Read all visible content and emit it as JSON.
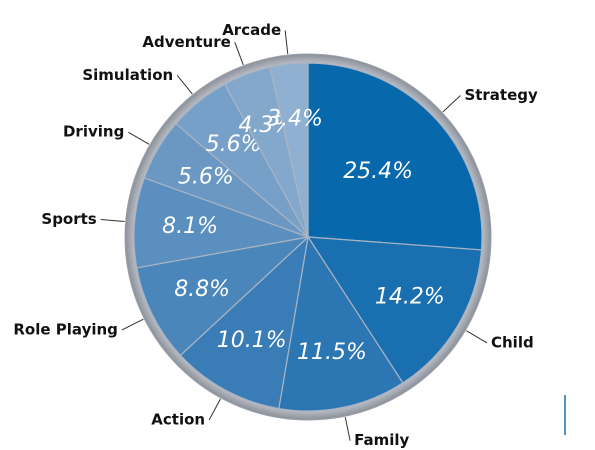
{
  "chart_data": {
    "type": "pie",
    "categories": [
      "Strategy",
      "Child",
      "Family",
      "Action",
      "Role Playing",
      "Sports",
      "Driving",
      "Simulation",
      "Adventure",
      "Arcade"
    ],
    "values": [
      25.4,
      14.2,
      11.5,
      10.1,
      8.8,
      8.1,
      5.6,
      5.6,
      4.3,
      3.4
    ],
    "value_labels": [
      "25.4%",
      "14.2%",
      "11.5%",
      "10.1%",
      "8.8%",
      "8.1%",
      "5.6%",
      "5.6%",
      "4.3%",
      "3.4%"
    ],
    "colors": [
      "#0868ac",
      "#1a6fb0",
      "#2b76b3",
      "#3a7db6",
      "#4a86ba",
      "#5a8fbf",
      "#6a98c3",
      "#76a0c8",
      "#83a8cc",
      "#90b0d1"
    ]
  }
}
